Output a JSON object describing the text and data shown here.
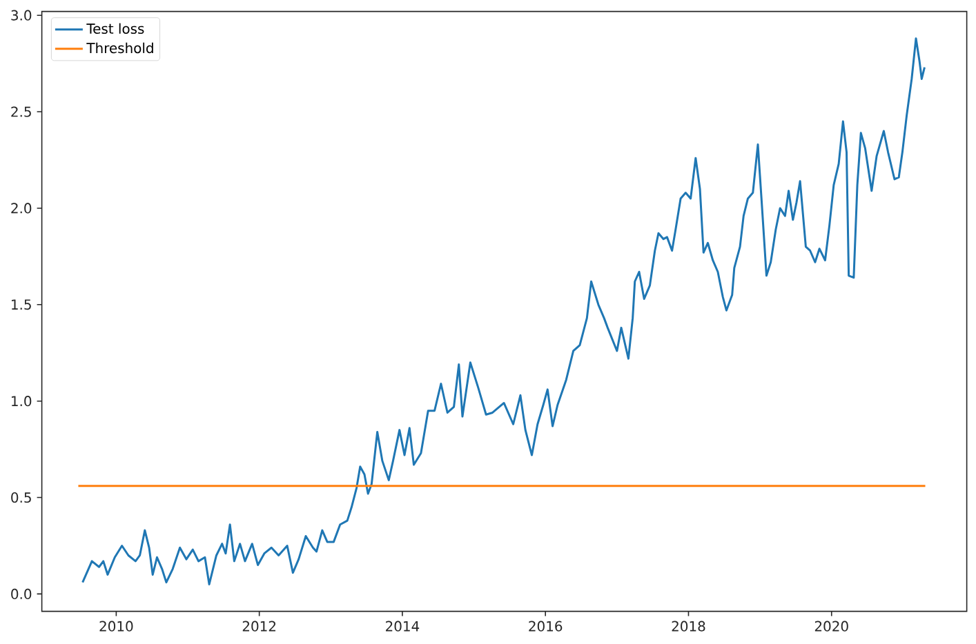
{
  "chart_data": {
    "type": "line",
    "xlim": [
      2008.96,
      2021.89
    ],
    "ylim": [
      -0.09,
      3.02
    ],
    "xticks": [
      2010,
      2012,
      2014,
      2016,
      2018,
      2020
    ],
    "yticks": [
      {
        "value": 0,
        "label": "0.0"
      },
      {
        "value": 0.5,
        "label": "0.5"
      },
      {
        "value": 1,
        "label": "1.0"
      },
      {
        "value": 1.5,
        "label": "1.5"
      },
      {
        "value": 2,
        "label": "2.0"
      },
      {
        "value": 2.5,
        "label": "2.5"
      },
      {
        "value": 3,
        "label": "3.0"
      }
    ],
    "legend": "top left",
    "series": [
      {
        "name": "Test loss",
        "color": "#1f77b4",
        "x": [
          2009.53,
          2009.66,
          2009.76,
          2009.82,
          2009.88,
          2009.98,
          2010.08,
          2010.17,
          2010.27,
          2010.33,
          2010.4,
          2010.46,
          2010.51,
          2010.57,
          2010.64,
          2010.7,
          2010.79,
          2010.89,
          2010.98,
          2011.07,
          2011.15,
          2011.24,
          2011.3,
          2011.4,
          2011.48,
          2011.53,
          2011.59,
          2011.65,
          2011.73,
          2011.8,
          2011.9,
          2011.98,
          2012.07,
          2012.17,
          2012.27,
          2012.39,
          2012.47,
          2012.55,
          2012.65,
          2012.75,
          2012.8,
          2012.88,
          2012.95,
          2013.04,
          2013.13,
          2013.23,
          2013.29,
          2013.36,
          2013.41,
          2013.47,
          2013.52,
          2013.57,
          2013.65,
          2013.72,
          2013.81,
          2013.87,
          2013.96,
          2014.03,
          2014.1,
          2014.16,
          2014.26,
          2014.36,
          2014.45,
          2014.54,
          2014.63,
          2014.72,
          2014.79,
          2014.84,
          2014.95,
          2015.06,
          2015.17,
          2015.26,
          2015.42,
          2015.55,
          2015.65,
          2015.72,
          2015.81,
          2015.89,
          2015.97,
          2016.03,
          2016.1,
          2016.17,
          2016.29,
          2016.39,
          2016.48,
          2016.58,
          2016.64,
          2016.74,
          2016.82,
          2016.87,
          2017.0,
          2017.06,
          2017.16,
          2017.22,
          2017.25,
          2017.31,
          2017.38,
          2017.46,
          2017.53,
          2017.58,
          2017.65,
          2017.7,
          2017.77,
          2017.82,
          2017.89,
          2017.96,
          2018.03,
          2018.1,
          2018.16,
          2018.21,
          2018.27,
          2018.34,
          2018.41,
          2018.48,
          2018.53,
          2018.61,
          2018.64,
          2018.72,
          2018.77,
          2018.83,
          2018.9,
          2018.97,
          2019.02,
          2019.09,
          2019.15,
          2019.22,
          2019.28,
          2019.35,
          2019.4,
          2019.46,
          2019.51,
          2019.56,
          2019.64,
          2019.7,
          2019.77,
          2019.83,
          2019.91,
          2019.97,
          2020.03,
          2020.1,
          2020.16,
          2020.21,
          2020.24,
          2020.31,
          2020.36,
          2020.41,
          2020.47,
          2020.56,
          2020.63,
          2020.73,
          2020.79,
          2020.88,
          2020.94,
          2020.99,
          2021.05,
          2021.12,
          2021.18,
          2021.23,
          2021.26,
          2021.3
        ],
        "values": [
          0.06,
          0.17,
          0.14,
          0.17,
          0.1,
          0.19,
          0.25,
          0.2,
          0.17,
          0.2,
          0.33,
          0.24,
          0.1,
          0.19,
          0.13,
          0.06,
          0.13,
          0.24,
          0.18,
          0.23,
          0.17,
          0.19,
          0.05,
          0.2,
          0.26,
          0.21,
          0.36,
          0.17,
          0.26,
          0.17,
          0.26,
          0.15,
          0.21,
          0.24,
          0.2,
          0.25,
          0.11,
          0.18,
          0.3,
          0.24,
          0.22,
          0.33,
          0.27,
          0.27,
          0.36,
          0.38,
          0.45,
          0.55,
          0.66,
          0.62,
          0.52,
          0.57,
          0.84,
          0.69,
          0.59,
          0.69,
          0.85,
          0.72,
          0.86,
          0.67,
          0.73,
          0.95,
          0.95,
          1.09,
          0.94,
          0.97,
          1.19,
          0.92,
          1.2,
          1.07,
          0.93,
          0.94,
          0.99,
          0.88,
          1.03,
          0.85,
          0.72,
          0.88,
          0.98,
          1.06,
          0.87,
          0.98,
          1.11,
          1.26,
          1.29,
          1.43,
          1.62,
          1.5,
          1.43,
          1.38,
          1.26,
          1.38,
          1.22,
          1.43,
          1.62,
          1.67,
          1.53,
          1.6,
          1.78,
          1.87,
          1.84,
          1.85,
          1.78,
          1.89,
          2.05,
          2.08,
          2.05,
          2.26,
          2.1,
          1.77,
          1.82,
          1.73,
          1.67,
          1.54,
          1.47,
          1.55,
          1.69,
          1.8,
          1.96,
          2.05,
          2.08,
          2.33,
          2.05,
          1.65,
          1.72,
          1.89,
          2.0,
          1.96,
          2.09,
          1.94,
          2.03,
          2.14,
          1.8,
          1.78,
          1.72,
          1.79,
          1.73,
          1.91,
          2.12,
          2.23,
          2.45,
          2.29,
          1.65,
          1.64,
          2.12,
          2.39,
          2.31,
          2.09,
          2.27,
          2.4,
          2.29,
          2.15,
          2.16,
          2.29,
          2.48,
          2.67,
          2.88,
          2.76,
          2.67,
          2.73
        ]
      },
      {
        "name": "Threshold",
        "color": "#ff7f0e",
        "x": [
          2009.47,
          2021.31
        ],
        "values": [
          0.56,
          0.56
        ]
      }
    ]
  }
}
